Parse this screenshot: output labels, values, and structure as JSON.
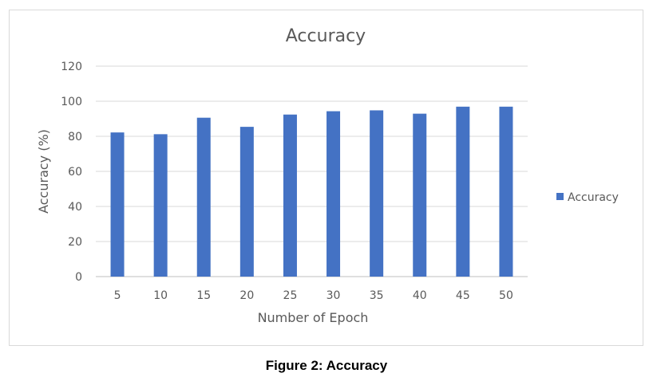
{
  "chart_data": {
    "type": "bar",
    "title": "Accuracy",
    "xlabel": "Number of Epoch",
    "ylabel": "Accuracy (%)",
    "categories": [
      "5",
      "10",
      "15",
      "20",
      "25",
      "30",
      "35",
      "40",
      "45",
      "50"
    ],
    "series": [
      {
        "name": "Accuracy",
        "values": [
          82.2,
          81.2,
          90.6,
          85.4,
          92.4,
          94.3,
          94.8,
          92.9,
          96.9,
          96.9
        ],
        "color": "#4472c4"
      }
    ],
    "ylim": [
      0,
      120
    ],
    "yticks": [
      0,
      20,
      40,
      60,
      80,
      100,
      120
    ],
    "grid": true,
    "legend": "right"
  },
  "caption": "Figure 2: Accuracy"
}
